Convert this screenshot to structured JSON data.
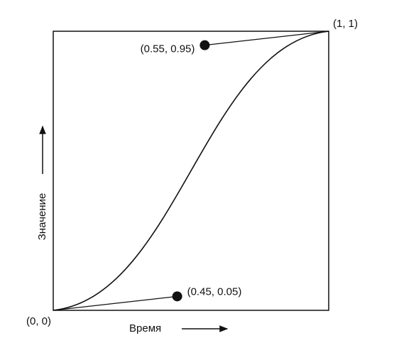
{
  "points": [
    {
      "label": "(0, 0)",
      "x": 0,
      "y": 0
    },
    {
      "label": "(0.45, 0.05)",
      "x": 0.45,
      "y": 0.05
    },
    {
      "label": "(0.55, 0.95)",
      "x": 0.55,
      "y": 0.95
    },
    {
      "label": "(1, 1)",
      "x": 1,
      "y": 1
    }
  ],
  "x_axis_label": "Время",
  "y_axis_label": "Значение"
}
